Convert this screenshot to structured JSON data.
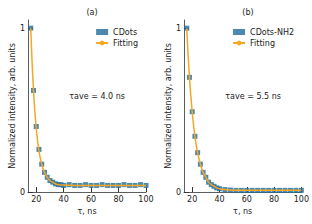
{
  "chart_data": [
    {
      "type": "scatter",
      "title": "(a)",
      "annotation": "τave = 4.0 ns",
      "x_label": "τ, ns",
      "y_label": "Normalized intensity, arb. units",
      "x": [
        16,
        18,
        20,
        22,
        24,
        26,
        28,
        30,
        32,
        34,
        36,
        38,
        40,
        44,
        48,
        52,
        56,
        60,
        64,
        68,
        72,
        76,
        80,
        84,
        88,
        92,
        96,
        100
      ],
      "series": [
        {
          "name": "CDots",
          "type": "scatter",
          "marker": "square",
          "color": "#1f6b9c",
          "values": [
            1.0,
            0.62,
            0.4,
            0.26,
            0.17,
            0.12,
            0.09,
            0.07,
            0.06,
            0.05,
            0.045,
            0.045,
            0.04,
            0.045,
            0.04,
            0.04,
            0.045,
            0.04,
            0.04,
            0.045,
            0.04,
            0.04,
            0.04,
            0.045,
            0.04,
            0.04,
            0.045,
            0.04
          ]
        },
        {
          "name": "Fitting",
          "type": "line",
          "color": "#f5a623",
          "values": [
            1.0,
            0.62,
            0.39,
            0.25,
            0.17,
            0.12,
            0.09,
            0.07,
            0.06,
            0.05,
            0.045,
            0.043,
            0.042,
            0.041,
            0.04,
            0.04,
            0.04,
            0.04,
            0.04,
            0.04,
            0.04,
            0.04,
            0.04,
            0.04,
            0.04,
            0.04,
            0.04,
            0.04
          ]
        }
      ],
      "xlim": [
        14,
        100
      ],
      "xticks": [
        20,
        40,
        60,
        80,
        100
      ],
      "ylim": [
        0,
        1.05
      ],
      "yticks": [
        0,
        1
      ],
      "legend": "upper right"
    },
    {
      "type": "scatter",
      "title": "(b)",
      "annotation": "τave = 5.5 ns",
      "x_label": "τ, ns",
      "y_label": "Normalized intensity, arb. units",
      "x": [
        16,
        18,
        20,
        22,
        24,
        26,
        28,
        30,
        32,
        34,
        36,
        38,
        40,
        44,
        48,
        52,
        56,
        60,
        64,
        68,
        72,
        76,
        80,
        84,
        88,
        92,
        96,
        100
      ],
      "series": [
        {
          "name": "CDots-NH2",
          "type": "scatter",
          "marker": "square",
          "color": "#1f6b9c",
          "values": [
            1.0,
            0.7,
            0.49,
            0.34,
            0.24,
            0.17,
            0.12,
            0.09,
            0.06,
            0.045,
            0.035,
            0.025,
            0.02,
            0.015,
            0.012,
            0.01,
            0.01,
            0.01,
            0.01,
            0.01,
            0.01,
            0.01,
            0.01,
            0.01,
            0.01,
            0.01,
            0.01,
            0.01
          ]
        },
        {
          "name": "Fitting",
          "type": "line",
          "color": "#f5a623",
          "values": [
            1.0,
            0.7,
            0.49,
            0.34,
            0.24,
            0.17,
            0.12,
            0.09,
            0.06,
            0.045,
            0.035,
            0.025,
            0.02,
            0.015,
            0.012,
            0.01,
            0.01,
            0.01,
            0.01,
            0.01,
            0.01,
            0.01,
            0.01,
            0.01,
            0.01,
            0.01,
            0.01,
            0.01
          ]
        }
      ],
      "xlim": [
        14,
        100
      ],
      "xticks": [
        20,
        40,
        60,
        80,
        100
      ],
      "ylim": [
        0,
        1.05
      ],
      "yticks": [
        0,
        1
      ],
      "legend": "upper right"
    }
  ]
}
